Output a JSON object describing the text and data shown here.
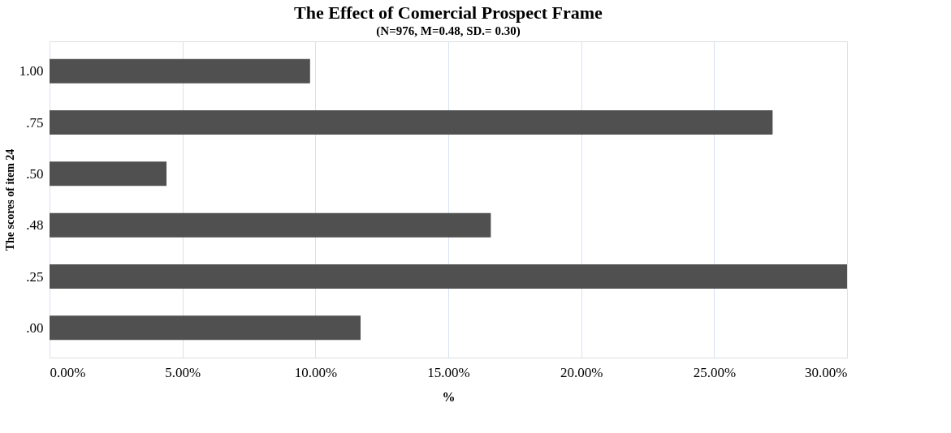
{
  "chart_data": {
    "type": "bar",
    "orientation": "horizontal",
    "title": "The Effect of Comercial Prospect Frame",
    "subtitle": "(N=976, M=0.48, SD.= 0.30)",
    "xlabel": "%",
    "ylabel": "The scores of item 24",
    "categories": [
      "1.00",
      ".75",
      ".50",
      ".48",
      ".25",
      ".00"
    ],
    "values": [
      9.8,
      27.2,
      4.4,
      16.6,
      30.0,
      11.7
    ],
    "color": "#505050",
    "xlim": [
      0,
      30
    ],
    "xticks": [
      {
        "value": 0,
        "label": "0.00%"
      },
      {
        "value": 5,
        "label": "5.00%"
      },
      {
        "value": 10,
        "label": "10.00%"
      },
      {
        "value": 15,
        "label": "15.00%"
      },
      {
        "value": 20,
        "label": "20.00%"
      },
      {
        "value": 25,
        "label": "25.00%"
      },
      {
        "value": 30,
        "label": "30.00%"
      }
    ],
    "grid": "x"
  }
}
